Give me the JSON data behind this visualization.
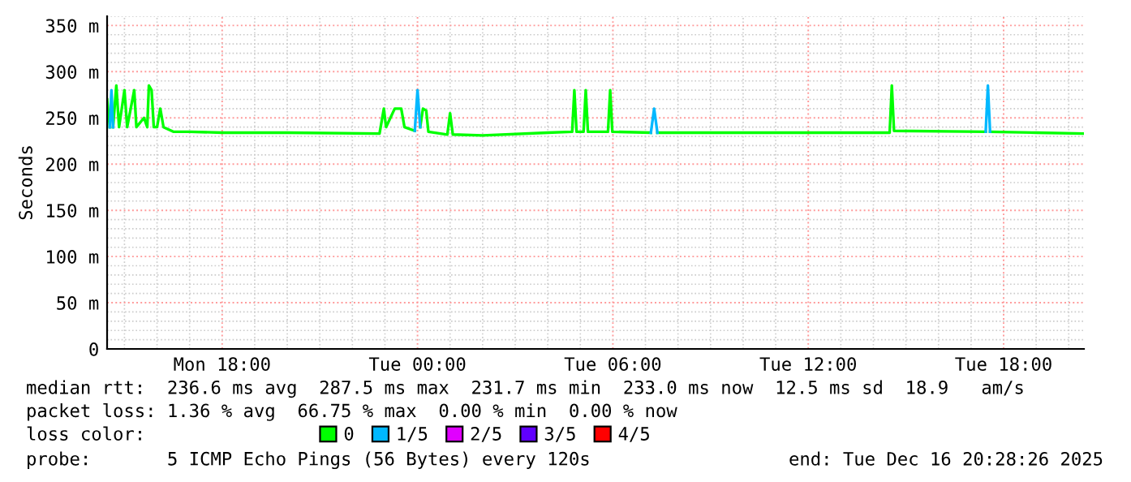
{
  "chart_data": {
    "type": "line",
    "ylabel": "Seconds",
    "xlim": [
      "2025-12-15T14:28",
      "2025-12-16T20:28"
    ],
    "ylim": [
      0,
      360
    ],
    "xticks": [
      {
        "value": "2025-12-15T18:00",
        "label": "Mon 18:00"
      },
      {
        "value": "2025-12-16T00:00",
        "label": "Tue 00:00"
      },
      {
        "value": "2025-12-16T06:00",
        "label": "Tue 06:00"
      },
      {
        "value": "2025-12-16T12:00",
        "label": "Tue 12:00"
      },
      {
        "value": "2025-12-16T18:00",
        "label": "Tue 18:00"
      }
    ],
    "yticks": [
      0,
      {
        "value": 50,
        "label": "50 m"
      },
      {
        "value": 100,
        "label": "100 m"
      },
      {
        "value": 150,
        "label": "150 m"
      },
      {
        "value": 200,
        "label": "200 m"
      },
      {
        "value": 250,
        "label": "250 m"
      },
      {
        "value": 300,
        "label": "300 m"
      },
      {
        "value": 350,
        "label": "350 m"
      }
    ],
    "grid": true,
    "legend": "bottom",
    "legend_title": "loss color:",
    "series": [
      {
        "name": "0",
        "color": "#00ff00",
        "x": [
          "2025-12-15T14:28",
          "2025-12-15T14:33",
          "2025-12-15T14:36",
          "2025-12-15T14:39",
          "2025-12-15T14:45",
          "2025-12-15T14:50",
          "2025-12-15T15:00",
          "2025-12-15T15:05",
          "2025-12-15T15:18",
          "2025-12-15T15:22",
          "2025-12-15T15:36",
          "2025-12-15T15:42",
          "2025-12-15T15:45",
          "2025-12-15T15:50",
          "2025-12-15T15:54",
          "2025-12-15T16:00",
          "2025-12-15T16:06",
          "2025-12-15T16:12",
          "2025-12-15T16:30",
          "2025-12-15T17:00",
          "2025-12-15T18:00",
          "2025-12-15T20:00",
          "2025-12-15T22:50",
          "2025-12-15T22:58",
          "2025-12-15T23:02",
          "2025-12-15T23:18",
          "2025-12-15T23:30",
          "2025-12-15T23:36",
          "2025-12-15T23:55",
          "2025-12-16T00:00",
          "2025-12-16T00:05",
          "2025-12-16T00:10",
          "2025-12-16T00:16",
          "2025-12-16T00:20",
          "2025-12-16T00:55",
          "2025-12-16T01:00",
          "2025-12-16T01:05",
          "2025-12-16T02:00",
          "2025-12-16T04:00",
          "2025-12-16T04:45",
          "2025-12-16T04:49",
          "2025-12-16T04:53",
          "2025-12-16T05:06",
          "2025-12-16T05:10",
          "2025-12-16T05:14",
          "2025-12-16T05:51",
          "2025-12-16T05:55",
          "2025-12-16T05:59",
          "2025-12-16T07:10",
          "2025-12-16T07:16",
          "2025-12-16T07:22",
          "2025-12-16T12:00",
          "2025-12-16T14:30",
          "2025-12-16T14:34",
          "2025-12-16T14:38",
          "2025-12-16T17:27",
          "2025-12-16T17:31",
          "2025-12-16T17:35",
          "2025-12-16T19:00",
          "2025-12-16T20:28"
        ],
        "values": [
          270,
          240,
          null,
          240,
          285,
          240,
          280,
          240,
          280,
          240,
          250,
          240,
          285,
          280,
          240,
          240,
          260,
          240,
          235,
          235,
          234,
          234,
          233,
          260,
          240,
          260,
          260,
          240,
          236,
          null,
          240,
          260,
          258,
          235,
          232,
          255,
          232,
          231,
          234,
          235,
          280,
          235,
          235,
          280,
          235,
          235,
          280,
          235,
          234,
          null,
          234,
          234,
          234,
          285,
          236,
          235,
          null,
          235,
          234,
          233
        ]
      },
      {
        "name": "1/5",
        "color": "#00b8ff",
        "x": [
          "2025-12-15T14:33",
          "2025-12-15T14:36",
          "2025-12-15T14:39",
          "2025-12-15T14:40",
          "2025-12-15T23:55",
          "2025-12-16T00:00",
          "2025-12-16T00:05",
          "2025-12-16T00:06",
          "2025-12-16T07:10",
          "2025-12-16T07:16",
          "2025-12-16T07:22",
          "2025-12-16T07:23",
          "2025-12-16T17:27",
          "2025-12-16T17:31",
          "2025-12-16T17:35"
        ],
        "values": [
          240,
          280,
          240,
          null,
          236,
          280,
          240,
          null,
          234,
          260,
          234,
          null,
          235,
          285,
          235
        ]
      },
      {
        "name": "2/5",
        "color": "#e000ff"
      },
      {
        "name": "3/5",
        "color": "#6000ff"
      },
      {
        "name": "4/5",
        "color": "#ff0000"
      }
    ],
    "annotations": [
      "median rtt:  236.6 ms avg  287.5 ms max  231.7 ms min  233.0 ms now  12.5 ms sd  18.9   am/s",
      "packet loss: 1.36 % avg  66.75 % max  0.00 % min  0.00 % now",
      "probe:       5 ICMP Echo Pings (56 Bytes) every 120s",
      "end: Tue Dec 16 20:28:26 2025"
    ]
  }
}
